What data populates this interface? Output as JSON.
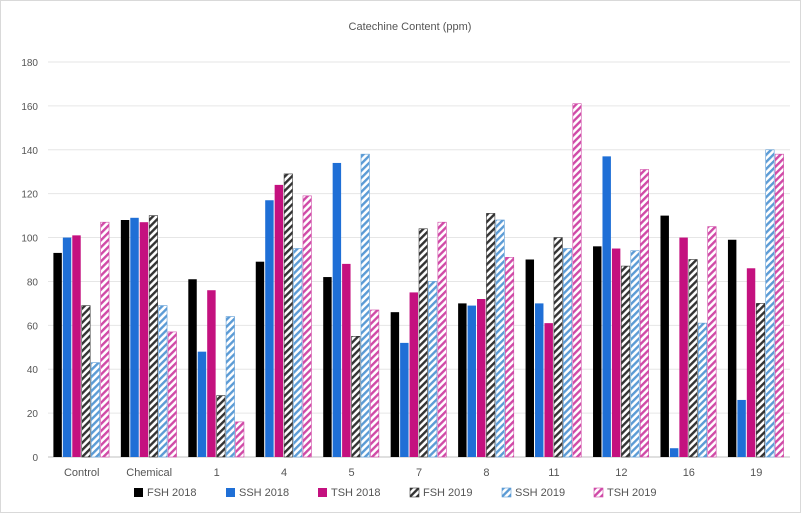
{
  "chart_data": {
    "type": "bar",
    "title": "Catechine Content (ppm)",
    "xlabel": "",
    "ylabel": "",
    "ylim": [
      0,
      180
    ],
    "yticks": [
      0,
      20,
      40,
      60,
      80,
      100,
      120,
      140,
      160,
      180
    ],
    "grid": true,
    "legend_position": "bottom",
    "categories": [
      "Control",
      "Chemical",
      "1",
      "4",
      "5",
      "7",
      "8",
      "11",
      "12",
      "16",
      "19"
    ],
    "series": [
      {
        "name": "FSH 2018",
        "color": "#000000",
        "pattern": "solid",
        "values": [
          93,
          108,
          81,
          89,
          82,
          66,
          70,
          90,
          96,
          110,
          99
        ]
      },
      {
        "name": "SSH 2018",
        "color": "#1f6fd6",
        "pattern": "solid",
        "values": [
          100,
          109,
          48,
          117,
          134,
          52,
          69,
          70,
          137,
          4,
          26
        ]
      },
      {
        "name": "TSH 2018",
        "color": "#c4117f",
        "pattern": "solid",
        "values": [
          101,
          107,
          76,
          124,
          88,
          75,
          72,
          61,
          95,
          100,
          86
        ]
      },
      {
        "name": "FSH 2019",
        "color": "#333333",
        "pattern": "hatch",
        "values": [
          69,
          110,
          28,
          129,
          55,
          104,
          111,
          100,
          87,
          90,
          70
        ]
      },
      {
        "name": "SSH 2019",
        "color": "#5b9bd5",
        "pattern": "hatch",
        "values": [
          43,
          69,
          64,
          95,
          138,
          80,
          108,
          95,
          94,
          61,
          140
        ]
      },
      {
        "name": "TSH 2019",
        "color": "#d04aa7",
        "pattern": "hatch",
        "values": [
          107,
          57,
          16,
          119,
          67,
          107,
          91,
          161,
          131,
          105,
          138
        ]
      }
    ]
  }
}
